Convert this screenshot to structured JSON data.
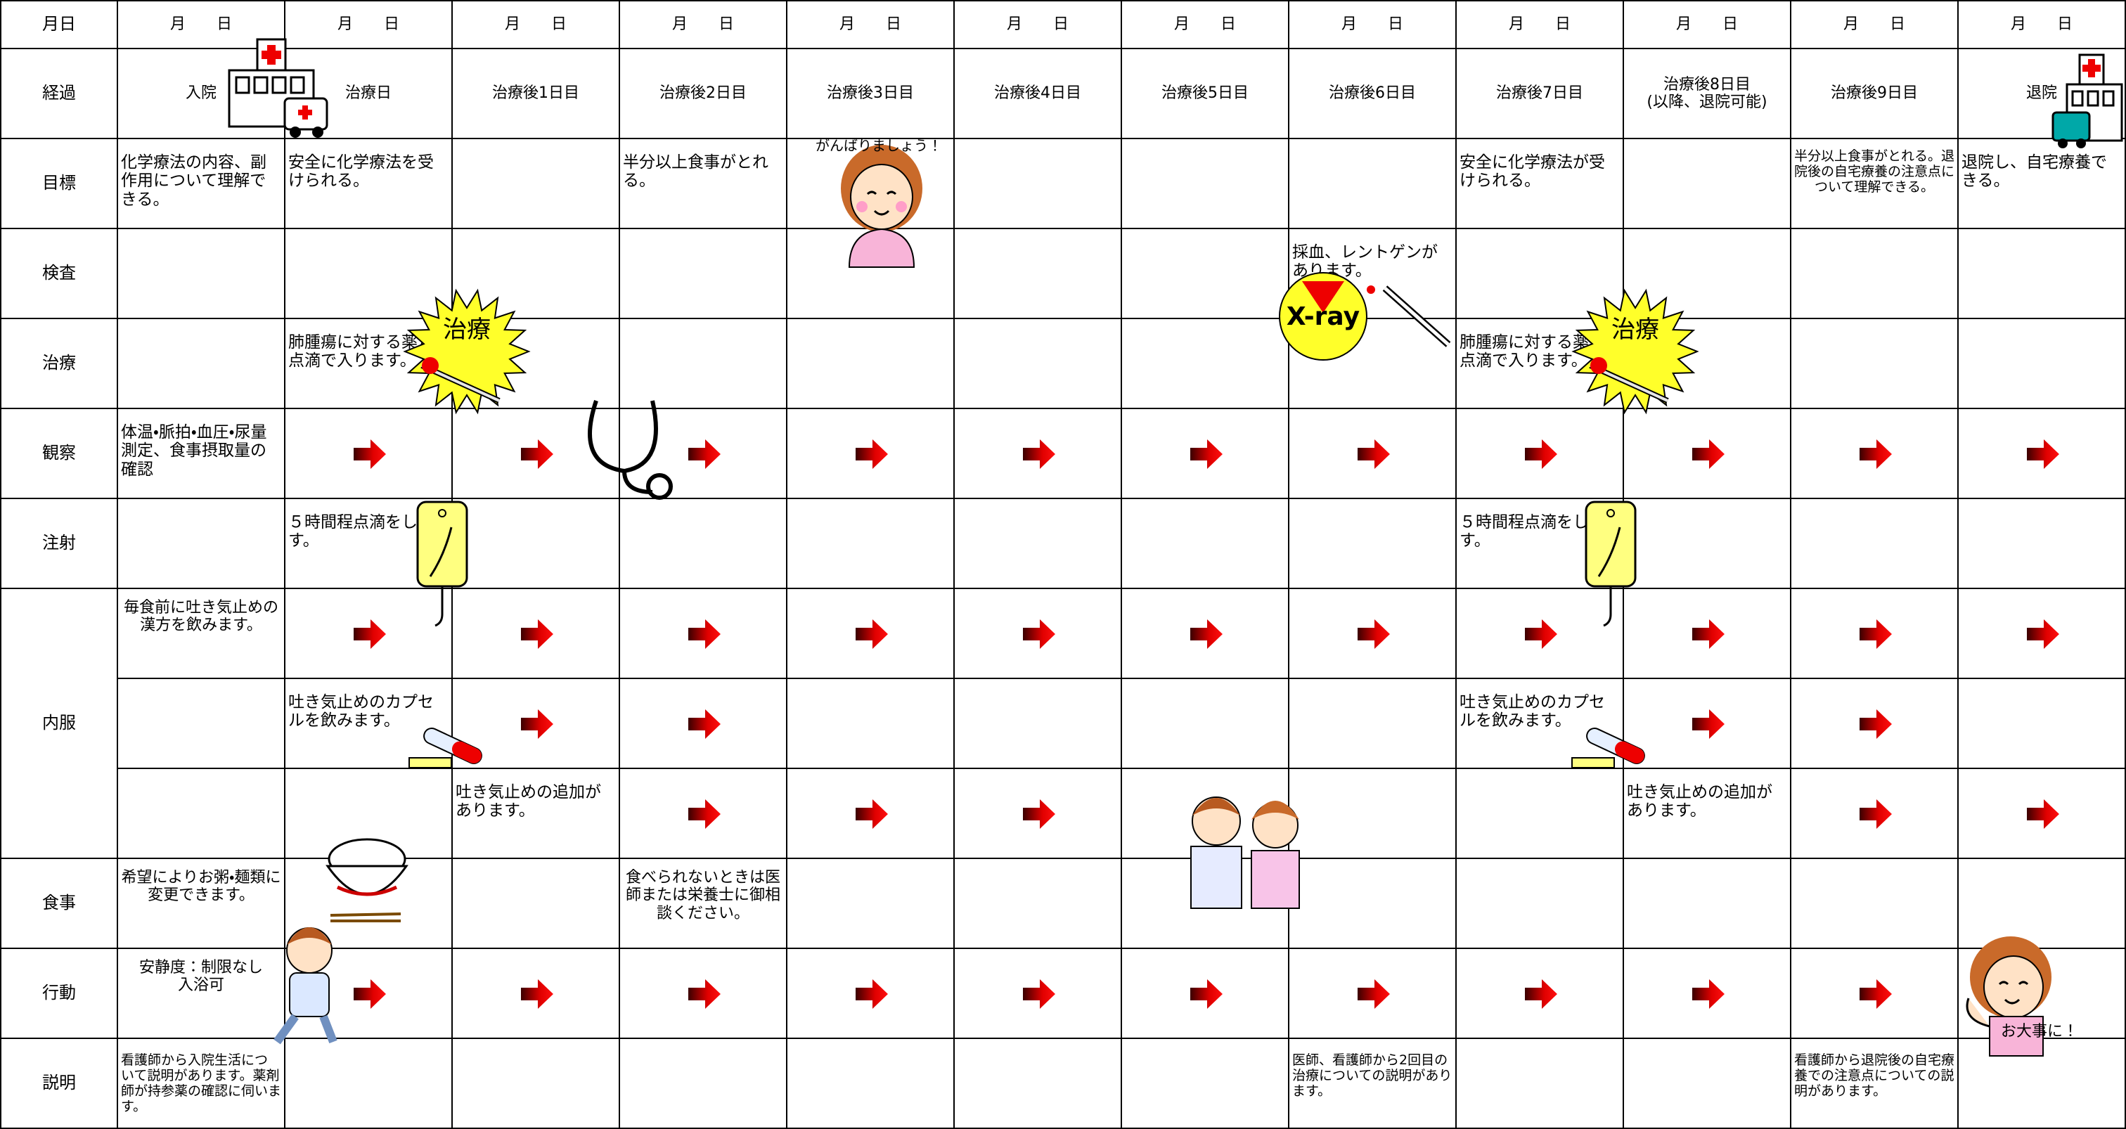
{
  "header": {
    "label": "月日",
    "dates": [
      "月　　日",
      "月　　日",
      "月　　日",
      "月　　日",
      "月　　日",
      "月　　日",
      "月　　日",
      "月　　日",
      "月　　日",
      "月　　日",
      "月　　日",
      "月　　日"
    ]
  },
  "rows": [
    {
      "label": "経過",
      "cells": [
        "入院",
        "治療日",
        "治療後1日目",
        "治療後2日目",
        "治療後3日目",
        "治療後4日目",
        "治療後5日目",
        "治療後6日目",
        "治療後7日目",
        "治療後8日目\n(以降、退院可能)",
        "治療後9日目",
        "退院"
      ]
    },
    {
      "label": "目標",
      "cells": [
        "化学療法の内容、副作用について理解できる。",
        "安全に化学療法を受けられる。",
        null,
        "半分以上食事がとれる。",
        null,
        null,
        null,
        null,
        "安全に化学療法が受けられる。",
        null,
        "半分以上食事がとれる。退院後の自宅療養の注意点について理解できる。",
        "退院し、自宅療養できる。"
      ]
    },
    {
      "label": "検査",
      "cells": [
        null,
        null,
        null,
        null,
        null,
        null,
        null,
        "採血、レントゲンがあります。",
        null,
        null,
        null,
        null
      ]
    },
    {
      "label": "治療",
      "cells": [
        null,
        "肺腫瘍に対する薬が点滴で入ります。",
        null,
        null,
        null,
        null,
        null,
        null,
        "肺腫瘍に対する薬が点滴で入ります。",
        null,
        null,
        null
      ]
    },
    {
      "label": "観察",
      "cells": [
        "体温・脈拍・血圧・尿量測定、食事摂取量の確認",
        null,
        null,
        null,
        null,
        null,
        null,
        null,
        null,
        null,
        null,
        null
      ]
    },
    {
      "label": "注射",
      "cells": [
        null,
        "５時間程点滴をします。",
        null,
        null,
        null,
        null,
        null,
        null,
        "５時間程点滴をします。",
        null,
        null,
        null
      ]
    },
    {
      "label": "内服",
      "lines": [
        [
          "毎食前に吐き気止めの漢方を飲みます。",
          null,
          null,
          null,
          null,
          null,
          null,
          null,
          null,
          null,
          null,
          null
        ],
        [
          null,
          "吐き気止めのカプセルを飲みます。",
          null,
          null,
          null,
          null,
          null,
          null,
          "吐き気止めのカプセルを飲みます。",
          null,
          null,
          null
        ],
        [
          null,
          null,
          "吐き気止めの追加があります。",
          null,
          null,
          null,
          null,
          null,
          null,
          "吐き気止めの追加があります。",
          null,
          null
        ]
      ]
    },
    {
      "label": "食事",
      "cells": [
        "希望によりお粥・麺類に変更できます。",
        null,
        null,
        "食べられないときは医師または栄養士に御相談ください。",
        null,
        null,
        null,
        null,
        null,
        null,
        null,
        null
      ]
    },
    {
      "label": "行動",
      "cells": [
        "安静度：制限なし\n入浴可",
        null,
        null,
        null,
        null,
        null,
        null,
        null,
        null,
        null,
        null,
        null
      ]
    },
    {
      "label": "説明",
      "cells": [
        "看護師から入院生活について説明があります。薬剤師が持参薬の確認に伺います。",
        null,
        null,
        null,
        null,
        null,
        null,
        "医師、看護師から2回目の治療についての説明があります。",
        null,
        null,
        "看護師から退院後の自宅療養での注意点についての説明があります。",
        null
      ]
    }
  ],
  "badges": {
    "treatment": "治療",
    "xray": "X-ray",
    "cheer": "がんばりましょう！",
    "farewell": "お大事に！"
  }
}
